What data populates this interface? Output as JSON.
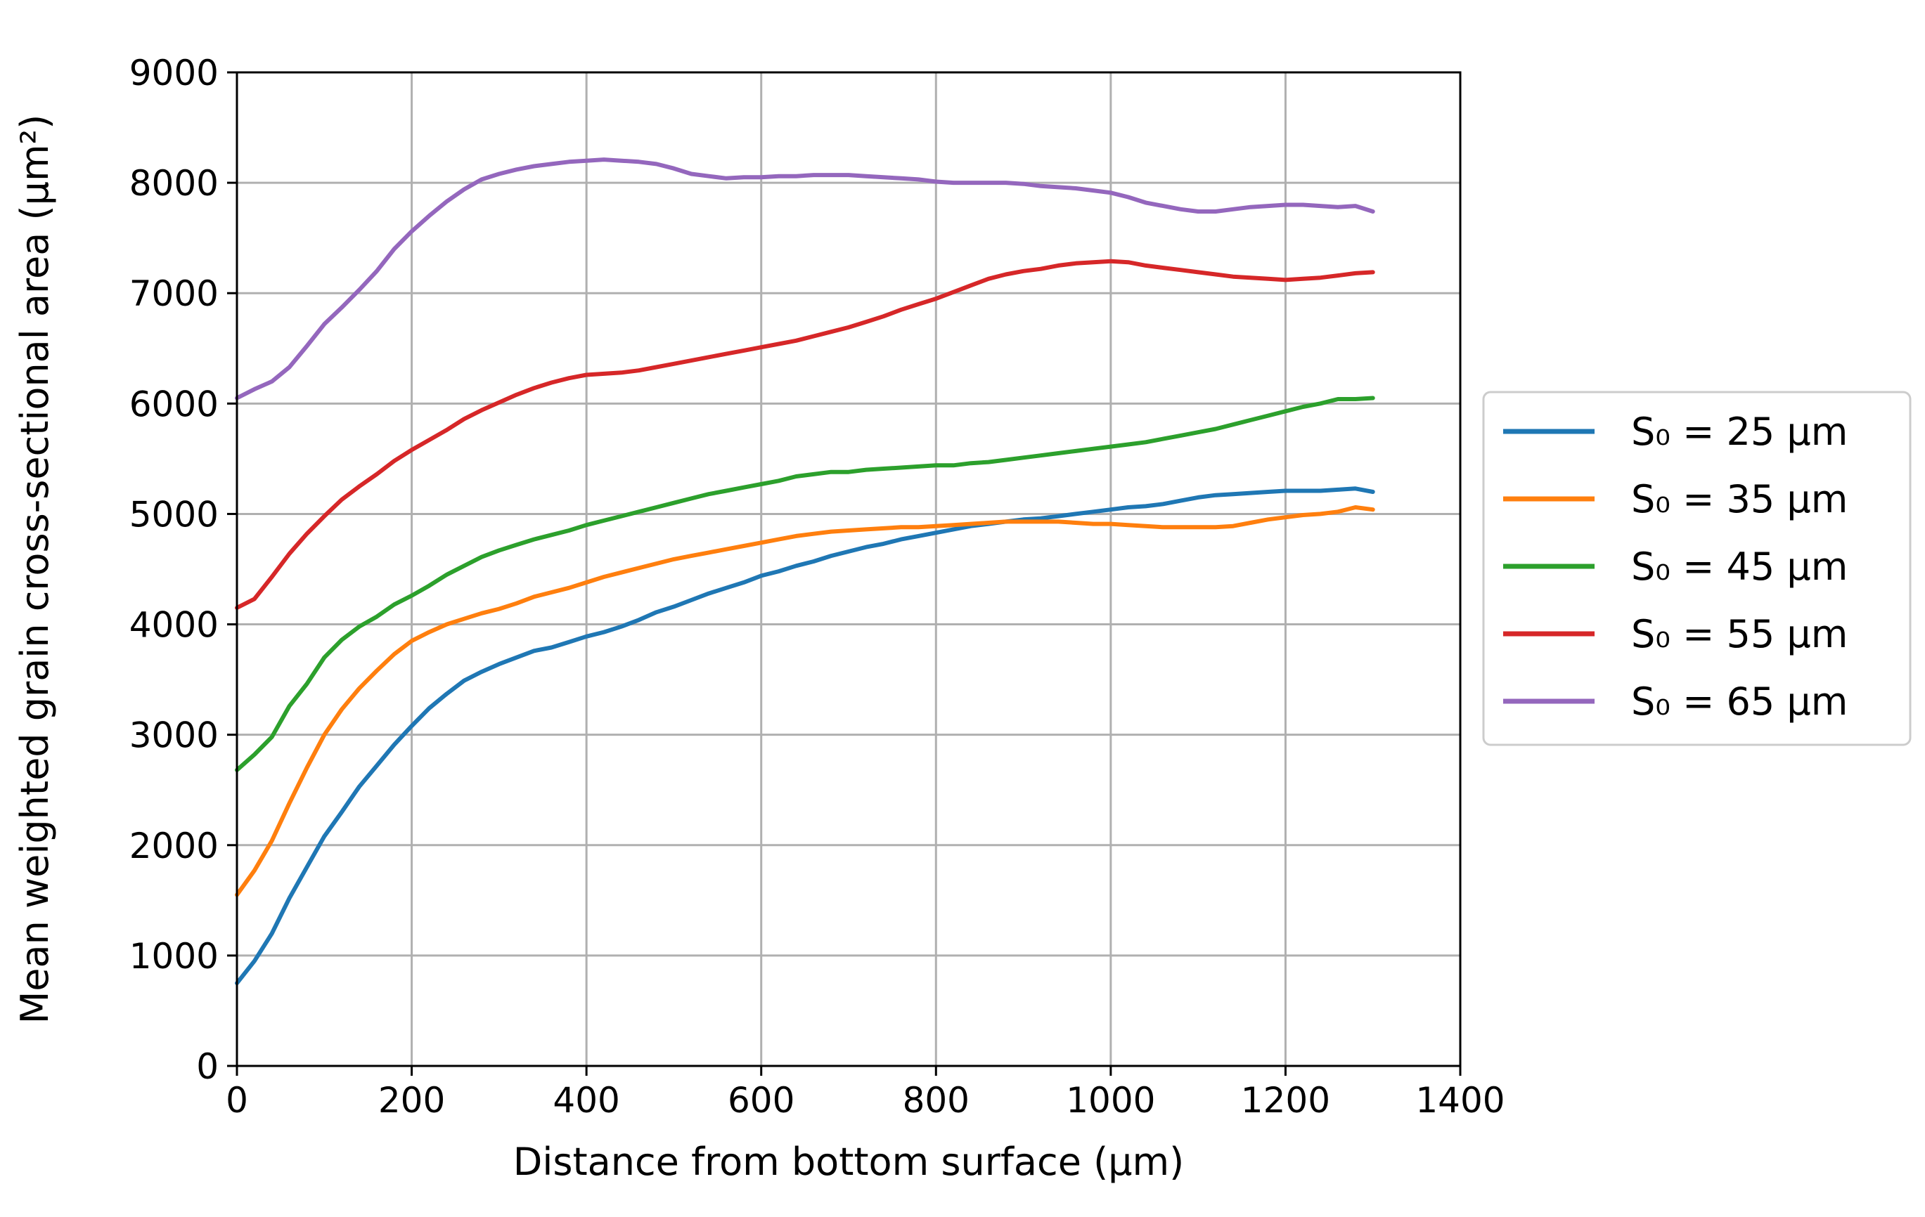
{
  "chart_data": {
    "type": "line",
    "title": "",
    "xlabel": "Distance from bottom surface (μm)",
    "ylabel": "Mean weighted grain cross-sectional area (μm²)",
    "xlim": [
      0,
      1400
    ],
    "ylim": [
      0,
      9000
    ],
    "xticks": [
      "0",
      "200",
      "400",
      "600",
      "800",
      "1000",
      "1200",
      "1400"
    ],
    "yticks": [
      "0",
      "1000",
      "2000",
      "3000",
      "4000",
      "5000",
      "6000",
      "7000",
      "8000",
      "9000"
    ],
    "grid": true,
    "legend_position": "right-outside",
    "x": [
      0,
      20,
      40,
      60,
      80,
      100,
      120,
      140,
      160,
      180,
      200,
      220,
      240,
      260,
      280,
      300,
      320,
      340,
      360,
      380,
      400,
      420,
      440,
      460,
      480,
      500,
      520,
      540,
      560,
      580,
      600,
      620,
      640,
      660,
      680,
      700,
      720,
      740,
      760,
      780,
      800,
      820,
      840,
      860,
      880,
      900,
      920,
      940,
      960,
      980,
      1000,
      1020,
      1040,
      1060,
      1080,
      1100,
      1120,
      1140,
      1160,
      1180,
      1200,
      1220,
      1240,
      1260,
      1280,
      1300
    ],
    "series": [
      {
        "name": "S₀ = 25 μm",
        "color": "#1f77b4",
        "values": [
          750,
          950,
          1200,
          1520,
          1800,
          2080,
          2300,
          2530,
          2720,
          2910,
          3080,
          3240,
          3370,
          3490,
          3570,
          3640,
          3700,
          3760,
          3790,
          3840,
          3890,
          3930,
          3980,
          4040,
          4110,
          4160,
          4220,
          4280,
          4330,
          4380,
          4440,
          4480,
          4530,
          4570,
          4620,
          4660,
          4700,
          4730,
          4770,
          4800,
          4830,
          4860,
          4890,
          4910,
          4930,
          4950,
          4960,
          4980,
          5000,
          5020,
          5040,
          5060,
          5070,
          5090,
          5120,
          5150,
          5170,
          5180,
          5190,
          5200,
          5210,
          5210,
          5210,
          5220,
          5230,
          5200
        ]
      },
      {
        "name": "S₀ = 35 μm",
        "color": "#ff7f0e",
        "values": [
          1550,
          1770,
          2040,
          2380,
          2700,
          3000,
          3230,
          3420,
          3580,
          3730,
          3850,
          3930,
          4000,
          4050,
          4100,
          4140,
          4190,
          4250,
          4290,
          4330,
          4380,
          4430,
          4470,
          4510,
          4550,
          4590,
          4620,
          4650,
          4680,
          4710,
          4740,
          4770,
          4800,
          4820,
          4840,
          4850,
          4860,
          4870,
          4880,
          4880,
          4890,
          4900,
          4910,
          4920,
          4930,
          4930,
          4930,
          4930,
          4920,
          4910,
          4910,
          4900,
          4890,
          4880,
          4880,
          4880,
          4880,
          4890,
          4920,
          4950,
          4970,
          4990,
          5000,
          5020,
          5060,
          5040
        ]
      },
      {
        "name": "S₀ = 45 μm",
        "color": "#2ca02c",
        "values": [
          2680,
          2820,
          2980,
          3260,
          3460,
          3700,
          3860,
          3980,
          4070,
          4180,
          4260,
          4350,
          4450,
          4530,
          4610,
          4670,
          4720,
          4770,
          4810,
          4850,
          4900,
          4940,
          4980,
          5020,
          5060,
          5100,
          5140,
          5180,
          5210,
          5240,
          5270,
          5300,
          5340,
          5360,
          5380,
          5380,
          5400,
          5410,
          5420,
          5430,
          5440,
          5440,
          5460,
          5470,
          5490,
          5510,
          5530,
          5550,
          5570,
          5590,
          5610,
          5630,
          5650,
          5680,
          5710,
          5740,
          5770,
          5810,
          5850,
          5890,
          5930,
          5970,
          6000,
          6040,
          6040,
          6050
        ]
      },
      {
        "name": "S₀ = 55 μm",
        "color": "#d62728",
        "values": [
          4150,
          4230,
          4430,
          4640,
          4820,
          4980,
          5130,
          5250,
          5360,
          5480,
          5580,
          5670,
          5760,
          5860,
          5940,
          6010,
          6080,
          6140,
          6190,
          6230,
          6260,
          6270,
          6280,
          6300,
          6330,
          6360,
          6390,
          6420,
          6450,
          6480,
          6510,
          6540,
          6570,
          6610,
          6650,
          6690,
          6740,
          6790,
          6850,
          6900,
          6950,
          7010,
          7070,
          7130,
          7170,
          7200,
          7220,
          7250,
          7270,
          7280,
          7290,
          7280,
          7250,
          7230,
          7210,
          7190,
          7170,
          7150,
          7140,
          7130,
          7120,
          7130,
          7140,
          7160,
          7180,
          7190
        ]
      },
      {
        "name": "S₀ = 65 μm",
        "color": "#9467bd",
        "values": [
          6050,
          6130,
          6200,
          6330,
          6520,
          6720,
          6870,
          7030,
          7200,
          7400,
          7560,
          7700,
          7830,
          7940,
          8030,
          8080,
          8120,
          8150,
          8170,
          8190,
          8200,
          8210,
          8200,
          8190,
          8170,
          8130,
          8080,
          8060,
          8040,
          8050,
          8050,
          8060,
          8060,
          8070,
          8070,
          8070,
          8060,
          8050,
          8040,
          8030,
          8010,
          8000,
          8000,
          8000,
          8000,
          7990,
          7970,
          7960,
          7950,
          7930,
          7910,
          7870,
          7820,
          7790,
          7760,
          7740,
          7740,
          7760,
          7780,
          7790,
          7800,
          7800,
          7790,
          7780,
          7790,
          7740
        ]
      }
    ]
  }
}
